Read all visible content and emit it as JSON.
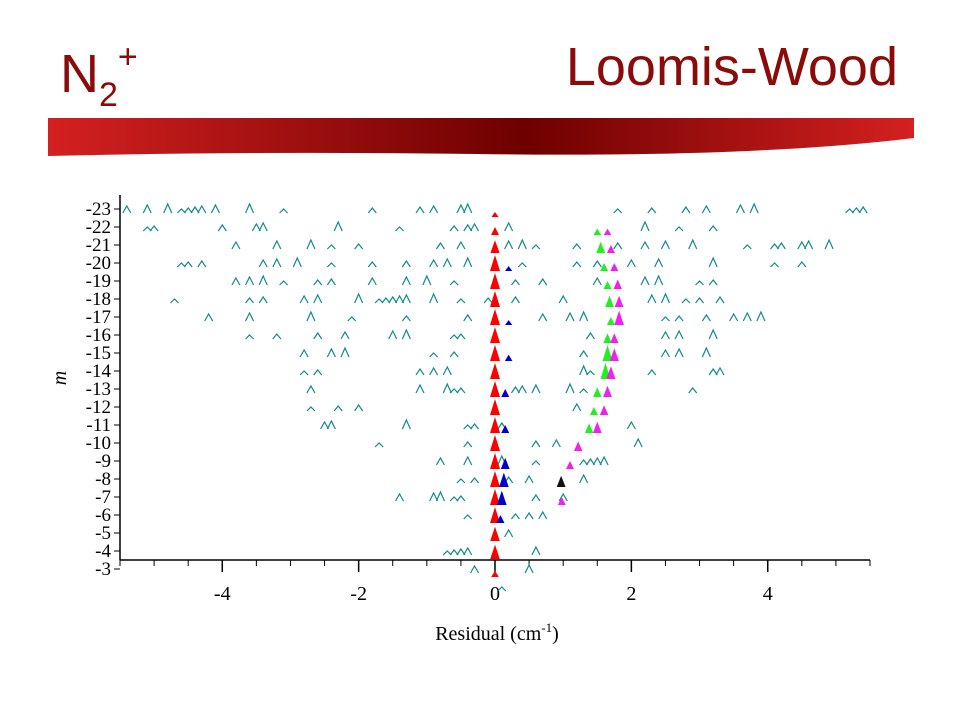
{
  "header": {
    "title_left_main": "N",
    "title_left_sub": "2",
    "title_left_sup": "+",
    "title_right": "Loomis-Wood"
  },
  "colors": {
    "title": "#8b0a0a",
    "banner_dark": "#6e0000",
    "banner_light": "#d42020",
    "series_teal": "#138a8a",
    "series_red": "#ff0000",
    "series_blue": "#0000cc",
    "series_green": "#22ee22",
    "series_magenta": "#ee22ee",
    "series_black": "#111111"
  },
  "chart_data": {
    "type": "scatter",
    "xlabel": "Residual (cm",
    "xlabel_sup": "-1",
    "xlabel_end": ")",
    "ylabel": "m",
    "xlim": [
      -5.5,
      5.5
    ],
    "ylim": [
      -23,
      -3
    ],
    "x_ticks": [
      -4,
      -2,
      0,
      2,
      4
    ],
    "x_tick_labels": [
      "-4",
      "-2",
      "0",
      "2",
      "4"
    ],
    "y_ticks": [
      -23,
      -22,
      -21,
      -20,
      -19,
      -18,
      -17,
      -16,
      -15,
      -14,
      -13,
      -12,
      -11,
      -10,
      -9,
      -8,
      -7,
      -6,
      -5,
      -4,
      -3
    ],
    "y_tick_labels": [
      "-23",
      "-22",
      "-21",
      "-20",
      "-19",
      "-18",
      "-17",
      "-16",
      "-15",
      "-14",
      "-13",
      "-12",
      "-11",
      "-10",
      "-9",
      "-8",
      "-7",
      "-6",
      "-5",
      "-4",
      "-3"
    ],
    "series": [
      {
        "color": "#ff0000",
        "points": [
          {
            "m": -23,
            "x": 0.0,
            "h": 0.3
          },
          {
            "m": -22,
            "x": 0.0,
            "h": 0.5
          },
          {
            "m": -21,
            "x": 0.0,
            "h": 0.8
          },
          {
            "m": -20,
            "x": 0.0,
            "h": 1.0
          },
          {
            "m": -19,
            "x": 0.0,
            "h": 1.0
          },
          {
            "m": -18,
            "x": 0.0,
            "h": 1.0
          },
          {
            "m": -17,
            "x": 0.0,
            "h": 1.0
          },
          {
            "m": -16,
            "x": 0.0,
            "h": 1.0
          },
          {
            "m": -15,
            "x": 0.0,
            "h": 1.0
          },
          {
            "m": -14,
            "x": 0.0,
            "h": 1.0
          },
          {
            "m": -13,
            "x": 0.0,
            "h": 1.0
          },
          {
            "m": -12,
            "x": 0.0,
            "h": 1.0
          },
          {
            "m": -11,
            "x": 0.0,
            "h": 1.0
          },
          {
            "m": -10,
            "x": 0.0,
            "h": 1.0
          },
          {
            "m": -9,
            "x": 0.0,
            "h": 1.0
          },
          {
            "m": -8,
            "x": 0.0,
            "h": 1.0
          },
          {
            "m": -7,
            "x": 0.0,
            "h": 1.0
          },
          {
            "m": -6,
            "x": 0.0,
            "h": 1.0
          },
          {
            "m": -5,
            "x": 0.0,
            "h": 0.9
          },
          {
            "m": -4,
            "x": 0.0,
            "h": 0.9
          },
          {
            "m": -3,
            "x": 0.0,
            "h": 0.4
          }
        ]
      },
      {
        "color": "#0000cc",
        "points": [
          {
            "m": -20,
            "x": 0.2,
            "h": 0.3
          },
          {
            "m": -17,
            "x": 0.2,
            "h": 0.3
          },
          {
            "m": -15,
            "x": 0.2,
            "h": 0.4
          },
          {
            "m": -13,
            "x": 0.15,
            "h": 0.5
          },
          {
            "m": -11,
            "x": 0.15,
            "h": 0.5
          },
          {
            "m": -9,
            "x": 0.15,
            "h": 0.7
          },
          {
            "m": -8,
            "x": 0.13,
            "h": 0.9
          },
          {
            "m": -7,
            "x": 0.1,
            "h": 0.9
          },
          {
            "m": -6,
            "x": 0.08,
            "h": 0.5
          }
        ]
      },
      {
        "color": "#22ee22",
        "points": [
          {
            "m": -22,
            "x": 1.5,
            "h": 0.4
          },
          {
            "m": -21,
            "x": 1.55,
            "h": 0.7
          },
          {
            "m": -20,
            "x": 1.6,
            "h": 0.5
          },
          {
            "m": -19,
            "x": 1.65,
            "h": 0.5
          },
          {
            "m": -18,
            "x": 1.68,
            "h": 0.7
          },
          {
            "m": -17,
            "x": 1.7,
            "h": 0.5
          },
          {
            "m": -16,
            "x": 1.65,
            "h": 0.6
          },
          {
            "m": -15,
            "x": 1.65,
            "h": 1.0
          },
          {
            "m": -14,
            "x": 1.62,
            "h": 1.0
          },
          {
            "m": -13,
            "x": 1.5,
            "h": 0.6
          },
          {
            "m": -12,
            "x": 1.45,
            "h": 0.5
          },
          {
            "m": -11,
            "x": 1.38,
            "h": 0.6
          }
        ]
      },
      {
        "color": "#ee22ee",
        "points": [
          {
            "m": -22,
            "x": 1.65,
            "h": 0.4
          },
          {
            "m": -21,
            "x": 1.7,
            "h": 0.5
          },
          {
            "m": -20,
            "x": 1.75,
            "h": 0.5
          },
          {
            "m": -19,
            "x": 1.8,
            "h": 0.6
          },
          {
            "m": -18,
            "x": 1.82,
            "h": 0.7
          },
          {
            "m": -17,
            "x": 1.82,
            "h": 0.9
          },
          {
            "m": -16,
            "x": 1.75,
            "h": 0.6
          },
          {
            "m": -15,
            "x": 1.75,
            "h": 0.8
          },
          {
            "m": -14,
            "x": 1.7,
            "h": 0.8
          },
          {
            "m": -13,
            "x": 1.65,
            "h": 0.7
          },
          {
            "m": -12,
            "x": 1.6,
            "h": 0.6
          },
          {
            "m": -11,
            "x": 1.5,
            "h": 0.7
          },
          {
            "m": -10,
            "x": 1.22,
            "h": 0.6
          },
          {
            "m": -9,
            "x": 1.1,
            "h": 0.5
          },
          {
            "m": -8,
            "x": 0.97,
            "h": 0.6
          },
          {
            "m": -7,
            "x": 0.98,
            "h": 0.5
          }
        ]
      },
      {
        "color": "#111111",
        "points": [
          {
            "m": -8,
            "x": 0.97,
            "h": 0.7
          }
        ]
      }
    ],
    "background_series": {
      "color": "#138a8a",
      "rows": [
        {
          "m": -23,
          "xs": [
            -5.4,
            -5.1,
            -4.8,
            -4.6,
            -4.5,
            -4.4,
            -4.3,
            -4.1,
            -3.6,
            -3.1,
            -1.8,
            -1.1,
            -0.9,
            -0.5,
            -0.4,
            1.8,
            2.3,
            2.8,
            3.1,
            3.6,
            3.8,
            5.2,
            5.3,
            5.4
          ]
        },
        {
          "m": -22,
          "xs": [
            -5.1,
            -5.0,
            -4.0,
            -3.5,
            -3.4,
            -2.3,
            -1.4,
            -0.6,
            -0.4,
            -0.3,
            0.2,
            2.2,
            2.7,
            3.2
          ]
        },
        {
          "m": -21,
          "xs": [
            -3.8,
            -3.2,
            -2.7,
            -2.4,
            -2.0,
            -0.8,
            -0.5,
            0.2,
            0.4,
            0.6,
            1.2,
            1.8,
            2.2,
            2.5,
            2.9,
            3.7,
            4.1,
            4.2,
            4.5,
            4.6,
            4.9
          ]
        },
        {
          "m": -20,
          "xs": [
            -4.6,
            -4.5,
            -4.3,
            -3.4,
            -3.2,
            -2.9,
            -2.4,
            -1.8,
            -1.3,
            -0.9,
            -0.7,
            -0.4,
            0.4,
            1.2,
            1.5,
            2.0,
            2.4,
            3.2,
            4.1,
            4.5
          ]
        },
        {
          "m": -19,
          "xs": [
            -3.8,
            -3.6,
            -3.4,
            -3.1,
            -2.6,
            -2.4,
            -1.8,
            -1.3,
            -1.0,
            -0.6,
            0.3,
            0.7,
            1.5,
            2.2,
            2.4,
            3.0,
            3.2
          ]
        },
        {
          "m": -18,
          "xs": [
            -4.7,
            -3.6,
            -3.4,
            -2.8,
            -2.6,
            -2.0,
            -1.7,
            -1.6,
            -1.5,
            -1.4,
            -1.3,
            -0.9,
            -0.5,
            -0.1,
            0.3,
            1.0,
            2.3,
            2.5,
            2.8,
            3.0,
            3.3
          ]
        },
        {
          "m": -17,
          "xs": [
            -4.2,
            -3.6,
            -2.7,
            -2.1,
            -1.3,
            -0.4,
            0.7,
            1.1,
            1.3,
            2.5,
            2.7,
            3.1,
            3.5,
            3.7,
            3.9
          ]
        },
        {
          "m": -16,
          "xs": [
            -3.6,
            -3.2,
            -2.6,
            -2.2,
            -1.5,
            -1.3,
            -0.6,
            -0.5,
            1.4,
            2.5,
            2.7,
            3.2
          ]
        },
        {
          "m": -15,
          "xs": [
            -2.8,
            -2.4,
            -2.2,
            -0.9,
            -0.6,
            1.3,
            2.5,
            2.7,
            3.1
          ]
        },
        {
          "m": -14,
          "xs": [
            -2.8,
            -2.6,
            -1.1,
            -0.9,
            -0.7,
            1.3,
            1.4,
            2.3,
            3.2,
            3.3
          ]
        },
        {
          "m": -13,
          "xs": [
            -2.7,
            -1.1,
            -0.7,
            -0.6,
            -0.5,
            0.3,
            0.4,
            0.6,
            1.1,
            1.3,
            2.9
          ]
        },
        {
          "m": -12,
          "xs": [
            -2.7,
            -2.3,
            -2.0,
            1.2
          ]
        },
        {
          "m": -11,
          "xs": [
            -2.5,
            -2.4,
            -1.3,
            -0.4,
            -0.3,
            0.1,
            2.0
          ]
        },
        {
          "m": -10,
          "xs": [
            -1.7,
            -0.4,
            0.6,
            0.9,
            2.1
          ]
        },
        {
          "m": -9,
          "xs": [
            -0.8,
            -0.4,
            0.1,
            0.6,
            1.3,
            1.4,
            1.5,
            1.6
          ]
        },
        {
          "m": -8,
          "xs": [
            -0.5,
            -0.3,
            0.2,
            0.5,
            1.3
          ]
        },
        {
          "m": -7,
          "xs": [
            -1.4,
            -0.9,
            -0.8,
            -0.6,
            -0.5,
            0.6,
            1.0
          ]
        },
        {
          "m": -6,
          "xs": [
            -0.4,
            0.3,
            0.5,
            0.7
          ]
        },
        {
          "m": -5,
          "xs": [
            0.2
          ]
        },
        {
          "m": -4,
          "xs": [
            -0.7,
            -0.6,
            -0.5,
            -0.4,
            0.6
          ]
        },
        {
          "m": -3,
          "xs": [
            -0.3,
            0.5
          ]
        },
        {
          "m": -2,
          "xs": [
            0.1
          ]
        }
      ]
    }
  }
}
